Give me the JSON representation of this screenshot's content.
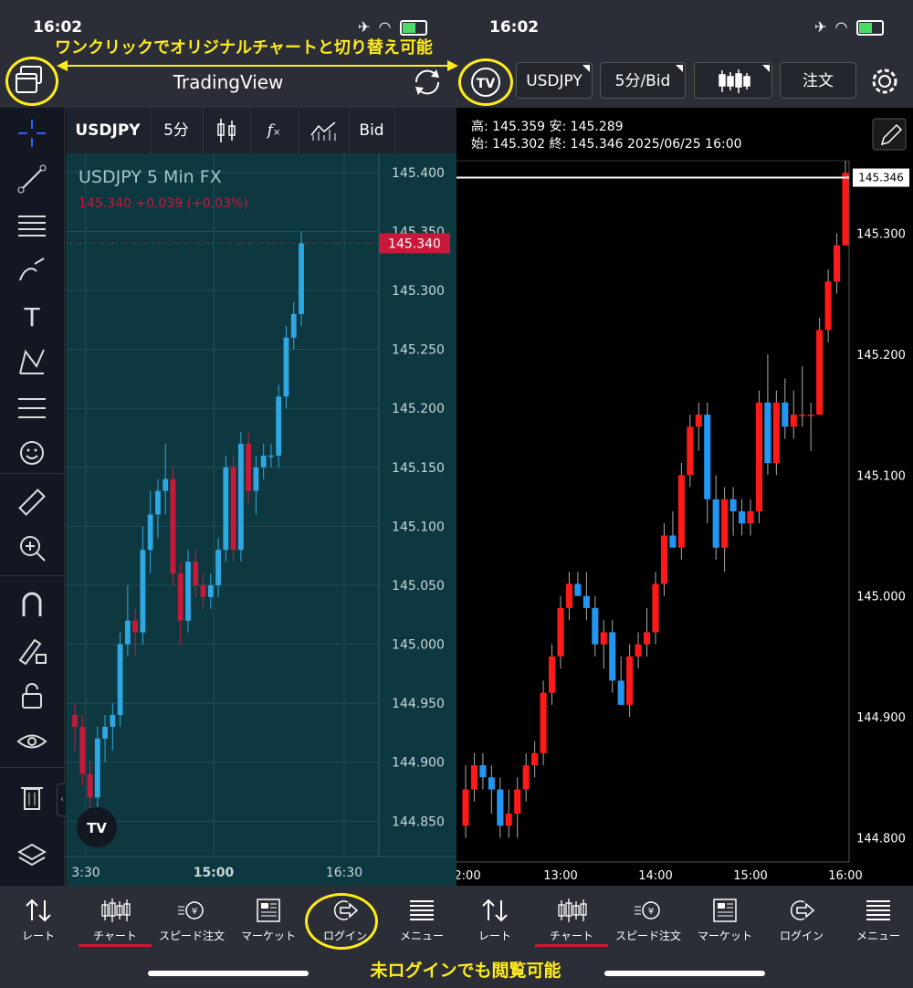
{
  "status_bar": {
    "time_left": "16:02",
    "time_right": "16:02"
  },
  "annotations": {
    "top": "ワンクリックでオリジナルチャートと切り替え可能",
    "bottom": "未ログインでも閲覧可能"
  },
  "header": {
    "app_title": "TradingView",
    "symbol": "USDJPY",
    "interval": "5分/Bid",
    "order_label": "注文"
  },
  "left_chart": {
    "toolbar": {
      "symbol": "USDJPY",
      "interval": "5分",
      "fx_label": "f",
      "price_type": "Bid"
    },
    "legend_title": "USDJPY  5  Min FX",
    "legend_quote": "145.340  +0.039 (+0.03%)",
    "last_price": "145.340",
    "y_ticks": [
      "145.400",
      "145.350",
      "145.300",
      "145.250",
      "145.200",
      "145.150",
      "145.100",
      "145.050",
      "145.000",
      "144.950",
      "144.900",
      "144.850"
    ],
    "x_ticks": [
      "3:30",
      "15:00",
      "16:30"
    ],
    "colors": {
      "up": "#2ea8e3",
      "down": "#c8193a",
      "background": "#0e3840"
    }
  },
  "right_chart": {
    "ohlc_line1": "高: 145.359  安: 145.289",
    "ohlc_line2": "始: 145.302  終: 145.346  2025/06/25 16:00",
    "last_price": "145.346",
    "y_ticks": [
      "145.300",
      "145.200",
      "145.100",
      "145.000",
      "144.900",
      "144.800"
    ],
    "x_ticks": [
      "2:00",
      "13:00",
      "14:00",
      "15:00",
      "16:00"
    ],
    "colors": {
      "up": "#ff1a1a",
      "down": "#2196f3"
    }
  },
  "bottom_nav": {
    "left": [
      "レート",
      "チャート",
      "スピード注文",
      "マーケット",
      "ログイン",
      "メニュー"
    ],
    "right": [
      "レート",
      "チャート",
      "スピード注文",
      "マーケット",
      "ログイン",
      "メニュー"
    ]
  },
  "chart_data": [
    {
      "type": "candlestick",
      "title": "USDJPY  5  Min FX",
      "x_ticks": [
        "3:30",
        "15:00",
        "16:30"
      ],
      "ylim": [
        144.82,
        145.41
      ],
      "candles": [
        [
          144.94,
          144.95,
          144.91,
          144.93
        ],
        [
          144.93,
          144.94,
          144.88,
          144.89
        ],
        [
          144.89,
          144.9,
          144.86,
          144.87
        ],
        [
          144.87,
          144.93,
          144.86,
          144.92
        ],
        [
          144.92,
          144.94,
          144.9,
          144.93
        ],
        [
          144.93,
          144.95,
          144.91,
          144.94
        ],
        [
          144.94,
          145.01,
          144.93,
          145.0
        ],
        [
          145.0,
          145.05,
          144.99,
          145.02
        ],
        [
          145.02,
          145.03,
          144.99,
          145.01
        ],
        [
          145.01,
          145.1,
          145.0,
          145.08
        ],
        [
          145.08,
          145.13,
          145.06,
          145.11
        ],
        [
          145.11,
          145.14,
          145.09,
          145.13
        ],
        [
          145.13,
          145.17,
          145.11,
          145.14
        ],
        [
          145.14,
          145.15,
          145.05,
          145.06
        ],
        [
          145.06,
          145.07,
          145.0,
          145.02
        ],
        [
          145.02,
          145.08,
          145.01,
          145.07
        ],
        [
          145.07,
          145.08,
          145.04,
          145.05
        ],
        [
          145.05,
          145.06,
          145.03,
          145.04
        ],
        [
          145.04,
          145.06,
          145.03,
          145.05
        ],
        [
          145.05,
          145.09,
          145.04,
          145.08
        ],
        [
          145.08,
          145.16,
          145.07,
          145.15
        ],
        [
          145.15,
          145.16,
          145.07,
          145.08
        ],
        [
          145.08,
          145.18,
          145.07,
          145.17
        ],
        [
          145.17,
          145.18,
          145.12,
          145.13
        ],
        [
          145.13,
          145.16,
          145.11,
          145.15
        ],
        [
          145.15,
          145.17,
          145.14,
          145.16
        ],
        [
          145.16,
          145.17,
          145.15,
          145.16
        ],
        [
          145.16,
          145.22,
          145.15,
          145.21
        ],
        [
          145.21,
          145.27,
          145.2,
          145.26
        ],
        [
          145.26,
          145.29,
          145.25,
          145.28
        ],
        [
          145.28,
          145.35,
          145.27,
          145.34
        ]
      ]
    },
    {
      "type": "candlestick",
      "x_ticks": [
        "2:00",
        "13:00",
        "14:00",
        "15:00",
        "16:00"
      ],
      "ylim": [
        144.78,
        145.36
      ],
      "candles": [
        [
          144.81,
          144.86,
          144.8,
          144.84
        ],
        [
          144.84,
          144.87,
          144.83,
          144.86
        ],
        [
          144.86,
          144.87,
          144.84,
          144.85
        ],
        [
          144.85,
          144.86,
          144.82,
          144.84
        ],
        [
          144.84,
          144.85,
          144.8,
          144.81
        ],
        [
          144.81,
          144.84,
          144.8,
          144.82
        ],
        [
          144.82,
          144.85,
          144.8,
          144.84
        ],
        [
          144.84,
          144.87,
          144.83,
          144.86
        ],
        [
          144.86,
          144.88,
          144.85,
          144.87
        ],
        [
          144.87,
          144.93,
          144.86,
          144.92
        ],
        [
          144.92,
          144.96,
          144.91,
          144.95
        ],
        [
          144.95,
          145.0,
          144.94,
          144.99
        ],
        [
          144.99,
          145.02,
          144.98,
          145.01
        ],
        [
          145.01,
          145.02,
          145.0,
          145.0
        ],
        [
          145.0,
          145.02,
          144.98,
          144.99
        ],
        [
          144.99,
          145.0,
          144.95,
          144.96
        ],
        [
          144.96,
          144.98,
          144.94,
          144.97
        ],
        [
          144.97,
          144.98,
          144.92,
          144.93
        ],
        [
          144.93,
          144.95,
          144.91,
          144.91
        ],
        [
          144.91,
          144.96,
          144.9,
          144.95
        ],
        [
          144.95,
          144.97,
          144.94,
          144.96
        ],
        [
          144.96,
          144.99,
          144.95,
          144.97
        ],
        [
          144.97,
          145.02,
          144.96,
          145.01
        ],
        [
          145.01,
          145.06,
          145.0,
          145.05
        ],
        [
          145.05,
          145.07,
          145.04,
          145.04
        ],
        [
          145.04,
          145.11,
          145.03,
          145.1
        ],
        [
          145.1,
          145.15,
          145.09,
          145.14
        ],
        [
          145.14,
          145.16,
          145.12,
          145.15
        ],
        [
          145.15,
          145.16,
          145.06,
          145.08
        ],
        [
          145.08,
          145.1,
          145.03,
          145.04
        ],
        [
          145.04,
          145.09,
          145.02,
          145.08
        ],
        [
          145.08,
          145.09,
          145.05,
          145.07
        ],
        [
          145.07,
          145.08,
          145.05,
          145.06
        ],
        [
          145.06,
          145.08,
          145.05,
          145.07
        ],
        [
          145.07,
          145.17,
          145.06,
          145.16
        ],
        [
          145.16,
          145.2,
          145.1,
          145.11
        ],
        [
          145.11,
          145.17,
          145.1,
          145.16
        ],
        [
          145.16,
          145.18,
          145.13,
          145.14
        ],
        [
          145.14,
          145.17,
          145.13,
          145.15
        ],
        [
          145.15,
          145.19,
          145.14,
          145.15
        ],
        [
          145.15,
          145.16,
          145.12,
          145.15
        ],
        [
          145.15,
          145.23,
          145.15,
          145.22
        ],
        [
          145.22,
          145.27,
          145.21,
          145.26
        ],
        [
          145.26,
          145.3,
          145.25,
          145.29
        ],
        [
          145.29,
          145.36,
          145.29,
          145.35
        ]
      ]
    }
  ]
}
